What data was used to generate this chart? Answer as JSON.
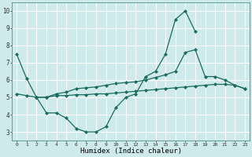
{
  "xlabel": "Humidex (Indice chaleur)",
  "xlim": [
    -0.5,
    23.5
  ],
  "ylim": [
    2.5,
    10.5
  ],
  "yticks": [
    3,
    4,
    5,
    6,
    7,
    8,
    9,
    10
  ],
  "xticks": [
    0,
    1,
    2,
    3,
    4,
    5,
    6,
    7,
    8,
    9,
    10,
    11,
    12,
    13,
    14,
    15,
    16,
    17,
    18,
    19,
    20,
    21,
    22,
    23
  ],
  "bg_color": "#ceeaea",
  "line_color": "#1a6b5e",
  "grid_color": "#b8d8d8",
  "line1_x": [
    0,
    1,
    2,
    3,
    4,
    5,
    6,
    7,
    8,
    9,
    10,
    11,
    12,
    13,
    14,
    15,
    16,
    17,
    18
  ],
  "line1_y": [
    7.5,
    6.1,
    5.0,
    4.1,
    4.1,
    3.8,
    3.2,
    3.0,
    3.0,
    3.3,
    4.4,
    5.0,
    5.2,
    6.2,
    6.5,
    7.5,
    9.5,
    10.0,
    8.8
  ],
  "line2_x": [
    2,
    3,
    4,
    5,
    6,
    7,
    8,
    9,
    10,
    11,
    12,
    13,
    14,
    15,
    16,
    17,
    18,
    19,
    20,
    21,
    22,
    23
  ],
  "line2_y": [
    5.0,
    5.0,
    5.2,
    5.3,
    5.5,
    5.55,
    5.6,
    5.7,
    5.8,
    5.85,
    5.9,
    6.0,
    6.15,
    6.3,
    6.5,
    7.6,
    7.75,
    6.2,
    6.2,
    6.0,
    5.7,
    5.5
  ],
  "line3_x": [
    0,
    1,
    2,
    3,
    4,
    5,
    6,
    7,
    8,
    9,
    10,
    11,
    12,
    13,
    14,
    15,
    16,
    17,
    18,
    19,
    20,
    21,
    22,
    23
  ],
  "line3_y": [
    5.2,
    5.1,
    5.0,
    5.0,
    5.1,
    5.1,
    5.15,
    5.15,
    5.2,
    5.2,
    5.25,
    5.3,
    5.35,
    5.4,
    5.45,
    5.5,
    5.55,
    5.6,
    5.65,
    5.7,
    5.75,
    5.75,
    5.7,
    5.5
  ]
}
